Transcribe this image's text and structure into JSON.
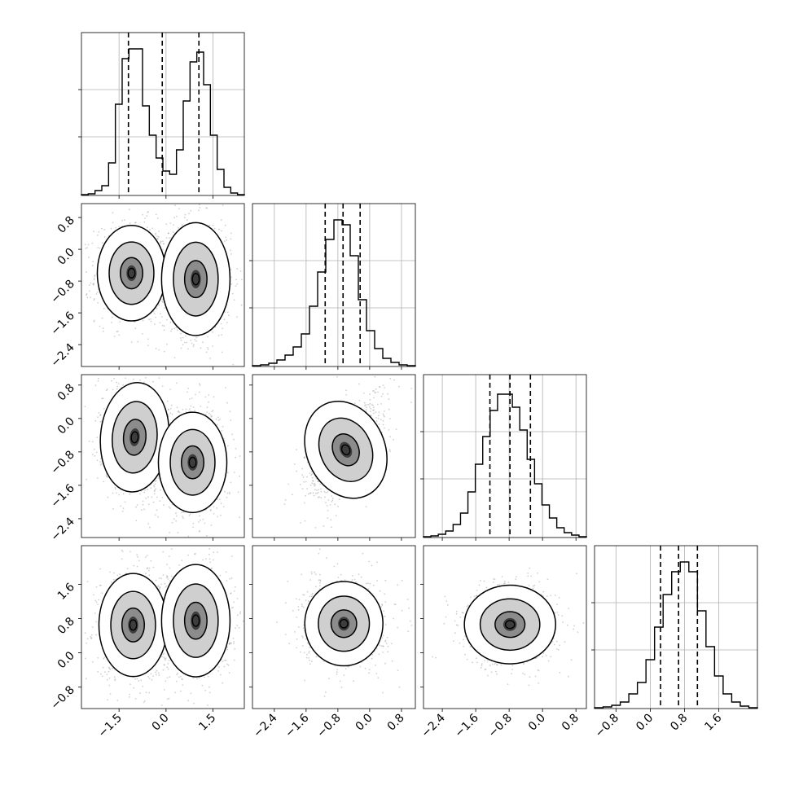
{
  "chart_data": {
    "type": "corner",
    "n_params": 4,
    "ticks": [
      {
        "values": [
          -1.5,
          0.0,
          1.5
        ],
        "labels": [
          "−1.5",
          "0.0",
          "1.5"
        ]
      },
      {
        "values": [
          -2.4,
          -1.6,
          -0.8,
          0.0,
          0.8
        ],
        "labels": [
          "−2.4",
          "−1.6",
          "−0.8",
          "0.0",
          "0.8"
        ]
      },
      {
        "values": [
          -2.4,
          -1.6,
          -0.8,
          0.0,
          0.8
        ],
        "labels": [
          "−2.4",
          "−1.6",
          "−0.8",
          "0.0",
          "0.8"
        ]
      },
      {
        "values": [
          -0.8,
          0.0,
          0.8,
          1.6
        ],
        "labels": [
          "−0.8",
          "0.0",
          "0.8",
          "1.6"
        ]
      }
    ],
    "ranges": [
      [
        -2.7,
        2.5
      ],
      [
        -2.95,
        1.15
      ],
      [
        -2.85,
        1.05
      ],
      [
        -1.3,
        2.5
      ]
    ],
    "histograms": [
      {
        "param": 0,
        "quantiles": [
          -1.2,
          -0.12,
          1.05
        ],
        "max_count": 1.0,
        "counts": [
          0.005,
          0.01,
          0.03,
          0.06,
          0.2,
          0.56,
          0.84,
          0.9,
          0.9,
          0.55,
          0.37,
          0.23,
          0.15,
          0.13,
          0.28,
          0.58,
          0.82,
          0.88,
          0.68,
          0.37,
          0.16,
          0.05,
          0.015,
          0.005
        ]
      },
      {
        "param": 1,
        "quantiles": [
          -1.12,
          -0.67,
          -0.24
        ],
        "max_count": 1.0,
        "counts": [
          0.005,
          0.01,
          0.02,
          0.04,
          0.07,
          0.12,
          0.2,
          0.37,
          0.58,
          0.78,
          0.9,
          0.87,
          0.68,
          0.41,
          0.22,
          0.11,
          0.05,
          0.025,
          0.01,
          0.005
        ]
      },
      {
        "param": 2,
        "quantiles": [
          -1.26,
          -0.78,
          -0.29
        ],
        "max_count": 1.0,
        "counts": [
          0.005,
          0.01,
          0.02,
          0.04,
          0.08,
          0.15,
          0.28,
          0.45,
          0.62,
          0.78,
          0.88,
          0.88,
          0.8,
          0.66,
          0.48,
          0.33,
          0.2,
          0.12,
          0.06,
          0.03,
          0.015,
          0.005
        ]
      },
      {
        "param": 3,
        "quantiles": [
          0.24,
          0.66,
          1.1
        ],
        "max_count": 1.0,
        "counts": [
          0.005,
          0.01,
          0.02,
          0.04,
          0.09,
          0.16,
          0.3,
          0.5,
          0.7,
          0.84,
          0.9,
          0.84,
          0.6,
          0.38,
          0.2,
          0.09,
          0.04,
          0.015,
          0.005
        ]
      }
    ],
    "panels_2d": [
      {
        "x": 0,
        "y": 1,
        "modes": [
          {
            "cx": -1.1,
            "cy": -0.6,
            "sx": 0.5,
            "sy": 0.55,
            "rho": 0.0
          },
          {
            "cx": 0.95,
            "cy": -0.75,
            "sx": 0.5,
            "sy": 0.65,
            "rho": 0.0
          }
        ]
      },
      {
        "x": 0,
        "y": 2,
        "modes": [
          {
            "cx": -1.0,
            "cy": -0.45,
            "sx": 0.5,
            "sy": 0.6,
            "rho": -0.1
          },
          {
            "cx": 0.85,
            "cy": -1.05,
            "sx": 0.5,
            "sy": 0.55,
            "rho": 0.0
          }
        ]
      },
      {
        "x": 0,
        "y": 3,
        "modes": [
          {
            "cx": -1.05,
            "cy": 0.65,
            "sx": 0.5,
            "sy": 0.55,
            "rho": 0.0
          },
          {
            "cx": 0.95,
            "cy": 0.75,
            "sx": 0.5,
            "sy": 0.6,
            "rho": 0.0
          }
        ]
      },
      {
        "x": 1,
        "y": 2,
        "modes": [
          {
            "cx": -0.6,
            "cy": -0.75,
            "sx": 0.45,
            "sy": 0.55,
            "rho": 0.6
          }
        ]
      },
      {
        "x": 1,
        "y": 3,
        "modes": [
          {
            "cx": -0.65,
            "cy": 0.68,
            "sx": 0.45,
            "sy": 0.45,
            "rho": 0.0
          }
        ]
      },
      {
        "x": 2,
        "y": 3,
        "modes": [
          {
            "cx": -0.78,
            "cy": 0.66,
            "sx": 0.5,
            "sy": 0.42,
            "rho": 0.0
          }
        ]
      }
    ],
    "contour_levels": [
      0.39,
      0.86,
      0.99
    ],
    "grid": true,
    "colors": {
      "line": "#000000",
      "grid": "#b0b0b0",
      "density": "#000000",
      "scatter": "#777777"
    }
  }
}
